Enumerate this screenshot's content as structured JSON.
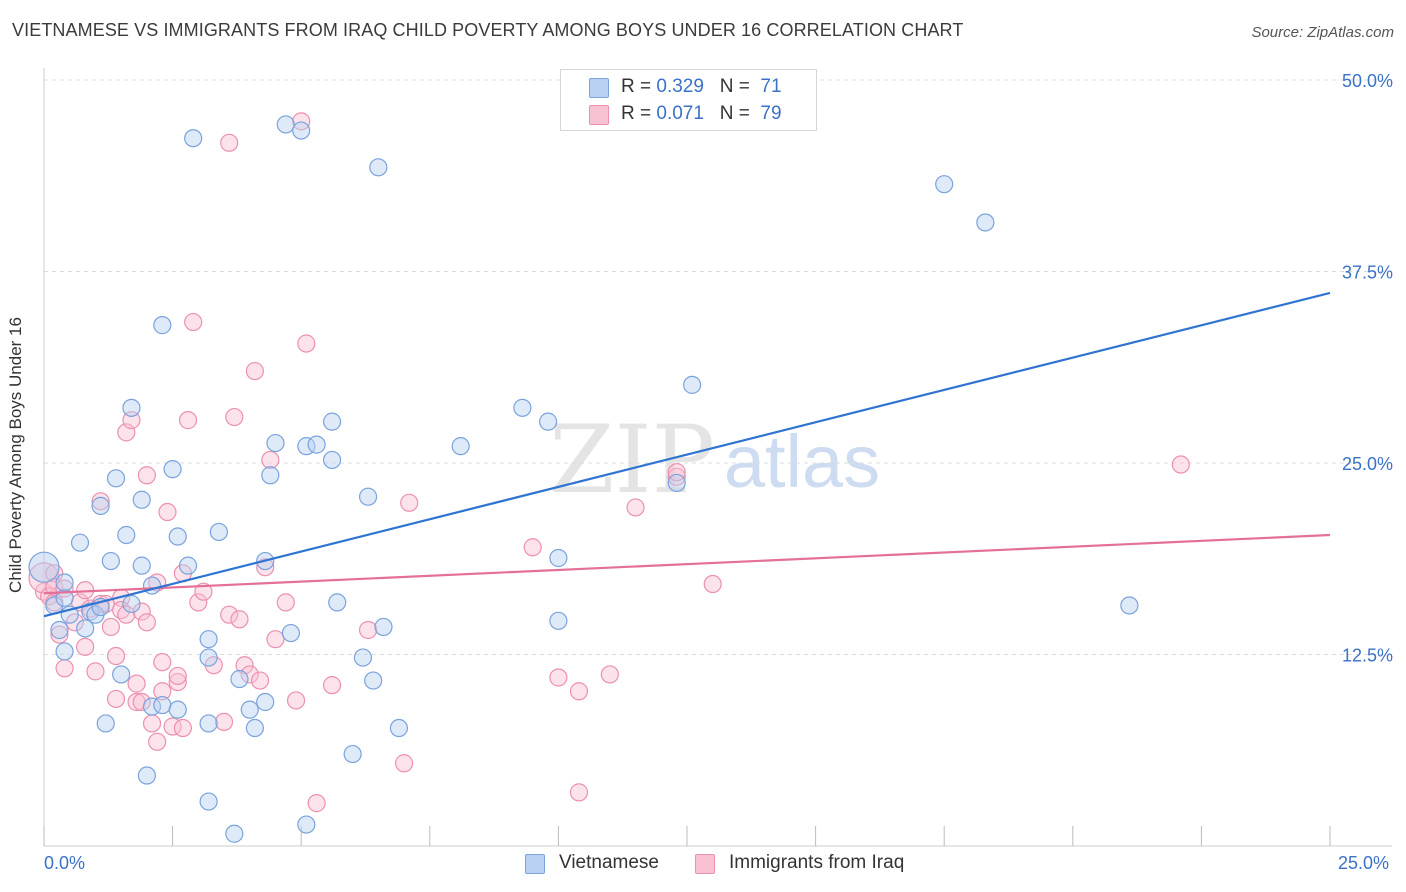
{
  "title": "VIETNAMESE VS IMMIGRANTS FROM IRAQ CHILD POVERTY AMONG BOYS UNDER 16 CORRELATION CHART",
  "source": "Source: ZipAtlas.com",
  "watermark": {
    "zip": "ZIP",
    "atlas": "atlas"
  },
  "legend_top": {
    "rows": [
      {
        "r_label": "R = ",
        "r_value": "0.329",
        "n_label": "N = ",
        "n_value": "71"
      },
      {
        "r_label": "R = ",
        "r_value": "0.071",
        "n_label": "N = ",
        "n_value": "79"
      }
    ]
  },
  "legend_bottom": [
    "Vietnamese",
    "Immigrants from Iraq"
  ],
  "colors": {
    "vietnamese_fill": "#b8d0f2",
    "vietnamese_stroke": "#7aa3dc",
    "vietnamese_line": "#2f74d0",
    "iraq_fill": "#f9c2d3",
    "iraq_stroke": "#ec90ae",
    "iraq_line": "#e46f98",
    "tick_label": "#3a72c6",
    "grid": "#dcdcdc"
  },
  "chart_data": {
    "type": "scatter",
    "title": "VIETNAMESE VS IMMIGRANTS FROM IRAQ CHILD POVERTY AMONG BOYS UNDER 16 CORRELATION CHART",
    "xlabel": "",
    "ylabel": "Child Poverty Among Boys Under 16",
    "xlim": [
      0,
      25
    ],
    "ylim": [
      0,
      50
    ],
    "x_tick_labels": [
      "0.0%",
      "25.0%"
    ],
    "y_ticks": [
      12.5,
      25.0,
      37.5,
      50.0
    ],
    "y_tick_labels": [
      "12.5%",
      "25.0%",
      "37.5%",
      "50.0%"
    ],
    "grid": true,
    "legend_position": "top-center",
    "series": [
      {
        "name": "Vietnamese",
        "r": 0.329,
        "n": 71,
        "trend": {
          "x": [
            0,
            25
          ],
          "y": [
            15.0,
            36.1
          ]
        },
        "points": [
          [
            0.0,
            18.2
          ],
          [
            0.2,
            15.7
          ],
          [
            0.3,
            14.1
          ],
          [
            0.4,
            16.2
          ],
          [
            0.4,
            17.2
          ],
          [
            0.4,
            12.7
          ],
          [
            0.5,
            15.1
          ],
          [
            0.7,
            19.8
          ],
          [
            0.8,
            14.2
          ],
          [
            0.9,
            15.3
          ],
          [
            1.0,
            15.1
          ],
          [
            1.1,
            22.2
          ],
          [
            1.1,
            15.6
          ],
          [
            1.2,
            8.0
          ],
          [
            1.3,
            18.6
          ],
          [
            1.4,
            24.0
          ],
          [
            1.5,
            11.2
          ],
          [
            1.6,
            20.3
          ],
          [
            1.7,
            15.8
          ],
          [
            1.7,
            28.6
          ],
          [
            1.9,
            18.3
          ],
          [
            1.9,
            22.6
          ],
          [
            2.0,
            4.6
          ],
          [
            2.1,
            9.1
          ],
          [
            2.1,
            17.0
          ],
          [
            2.3,
            9.2
          ],
          [
            2.3,
            34.0
          ],
          [
            2.5,
            24.6
          ],
          [
            2.6,
            20.2
          ],
          [
            2.6,
            8.9
          ],
          [
            2.8,
            18.3
          ],
          [
            2.9,
            46.2
          ],
          [
            3.2,
            2.9
          ],
          [
            3.2,
            13.5
          ],
          [
            3.2,
            12.3
          ],
          [
            3.2,
            8.0
          ],
          [
            3.4,
            20.5
          ],
          [
            3.7,
            0.8
          ],
          [
            3.8,
            10.9
          ],
          [
            4.0,
            8.9
          ],
          [
            4.1,
            7.7
          ],
          [
            4.3,
            9.4
          ],
          [
            4.3,
            18.6
          ],
          [
            4.4,
            24.2
          ],
          [
            4.5,
            26.3
          ],
          [
            4.7,
            47.1
          ],
          [
            4.8,
            13.9
          ],
          [
            5.0,
            46.7
          ],
          [
            5.1,
            1.4
          ],
          [
            5.1,
            26.1
          ],
          [
            5.3,
            26.2
          ],
          [
            5.6,
            27.7
          ],
          [
            5.6,
            25.2
          ],
          [
            5.7,
            15.9
          ],
          [
            6.0,
            6.0
          ],
          [
            6.2,
            12.3
          ],
          [
            6.3,
            22.8
          ],
          [
            6.4,
            10.8
          ],
          [
            6.5,
            44.3
          ],
          [
            6.6,
            14.3
          ],
          [
            6.9,
            7.7
          ],
          [
            8.1,
            26.1
          ],
          [
            9.3,
            28.6
          ],
          [
            9.8,
            27.7
          ],
          [
            10.0,
            14.7
          ],
          [
            10.0,
            18.8
          ],
          [
            12.3,
            23.7
          ],
          [
            12.6,
            30.1
          ],
          [
            17.5,
            43.2
          ],
          [
            18.3,
            40.7
          ],
          [
            21.1,
            15.7
          ]
        ]
      },
      {
        "name": "Immigrants from Iraq",
        "r": 0.071,
        "n": 79,
        "trend": {
          "x": [
            0,
            25
          ],
          "y": [
            16.5,
            20.3
          ]
        },
        "points": [
          [
            0.0,
            16.6
          ],
          [
            0.0,
            17.5
          ],
          [
            0.1,
            16.3
          ],
          [
            0.2,
            17.8
          ],
          [
            0.2,
            15.9
          ],
          [
            0.2,
            16.9
          ],
          [
            0.3,
            13.8
          ],
          [
            0.4,
            11.6
          ],
          [
            0.4,
            16.8
          ],
          [
            0.6,
            14.6
          ],
          [
            0.7,
            15.9
          ],
          [
            0.8,
            13.0
          ],
          [
            0.8,
            16.7
          ],
          [
            0.9,
            15.5
          ],
          [
            1.0,
            11.4
          ],
          [
            1.1,
            15.8
          ],
          [
            1.1,
            22.5
          ],
          [
            1.2,
            15.8
          ],
          [
            1.3,
            14.3
          ],
          [
            1.4,
            12.4
          ],
          [
            1.4,
            9.6
          ],
          [
            1.5,
            16.2
          ],
          [
            1.5,
            15.4
          ],
          [
            1.6,
            27.0
          ],
          [
            1.6,
            15.1
          ],
          [
            1.7,
            27.8
          ],
          [
            1.8,
            10.6
          ],
          [
            1.8,
            9.4
          ],
          [
            1.9,
            9.4
          ],
          [
            1.9,
            15.3
          ],
          [
            2.0,
            24.2
          ],
          [
            2.0,
            14.6
          ],
          [
            2.1,
            8.0
          ],
          [
            2.2,
            17.2
          ],
          [
            2.2,
            6.8
          ],
          [
            2.3,
            12.0
          ],
          [
            2.3,
            10.1
          ],
          [
            2.4,
            21.8
          ],
          [
            2.5,
            7.8
          ],
          [
            2.6,
            10.7
          ],
          [
            2.6,
            11.1
          ],
          [
            2.7,
            7.7
          ],
          [
            2.7,
            17.8
          ],
          [
            2.8,
            27.8
          ],
          [
            2.9,
            34.2
          ],
          [
            3.0,
            15.9
          ],
          [
            3.1,
            16.6
          ],
          [
            3.3,
            11.8
          ],
          [
            3.5,
            8.1
          ],
          [
            3.6,
            45.9
          ],
          [
            3.6,
            15.1
          ],
          [
            3.7,
            28.0
          ],
          [
            3.8,
            14.8
          ],
          [
            3.9,
            11.8
          ],
          [
            4.0,
            11.2
          ],
          [
            4.1,
            31.0
          ],
          [
            4.2,
            10.8
          ],
          [
            4.3,
            18.2
          ],
          [
            4.4,
            25.2
          ],
          [
            4.5,
            13.5
          ],
          [
            4.7,
            15.9
          ],
          [
            4.9,
            9.5
          ],
          [
            5.0,
            47.3
          ],
          [
            5.1,
            32.8
          ],
          [
            5.3,
            2.8
          ],
          [
            5.6,
            10.5
          ],
          [
            6.3,
            14.1
          ],
          [
            7.0,
            5.4
          ],
          [
            7.1,
            22.4
          ],
          [
            9.5,
            19.5
          ],
          [
            10.0,
            11.0
          ],
          [
            10.4,
            3.5
          ],
          [
            10.4,
            10.1
          ],
          [
            11.0,
            11.2
          ],
          [
            11.5,
            22.1
          ],
          [
            12.3,
            24.1
          ],
          [
            12.3,
            24.4
          ],
          [
            13.0,
            17.1
          ],
          [
            22.1,
            24.9
          ]
        ]
      }
    ]
  }
}
